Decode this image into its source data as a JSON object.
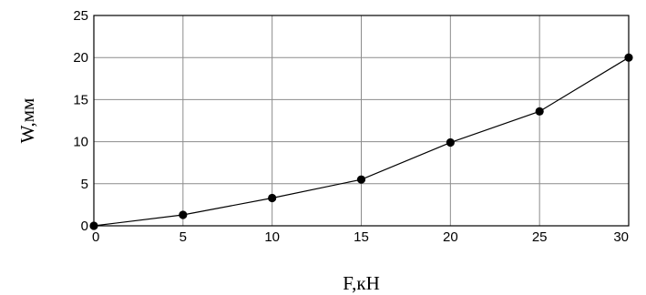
{
  "chart_data": {
    "type": "line",
    "title": "",
    "xlabel": "F,кН",
    "ylabel": "W,мм",
    "xlim": [
      0,
      30
    ],
    "ylim": [
      0,
      25
    ],
    "x_ticks": [
      0,
      5,
      10,
      15,
      20,
      25,
      30
    ],
    "y_ticks": [
      0,
      5,
      10,
      15,
      20,
      25
    ],
    "grid": true,
    "legend": "none",
    "series": [
      {
        "x": [
          0,
          5,
          10,
          15,
          20,
          25,
          30
        ],
        "y": [
          0,
          1.3,
          3.3,
          5.5,
          9.9,
          13.6,
          20.0
        ],
        "color": "#000000",
        "marker": "circle"
      }
    ]
  }
}
